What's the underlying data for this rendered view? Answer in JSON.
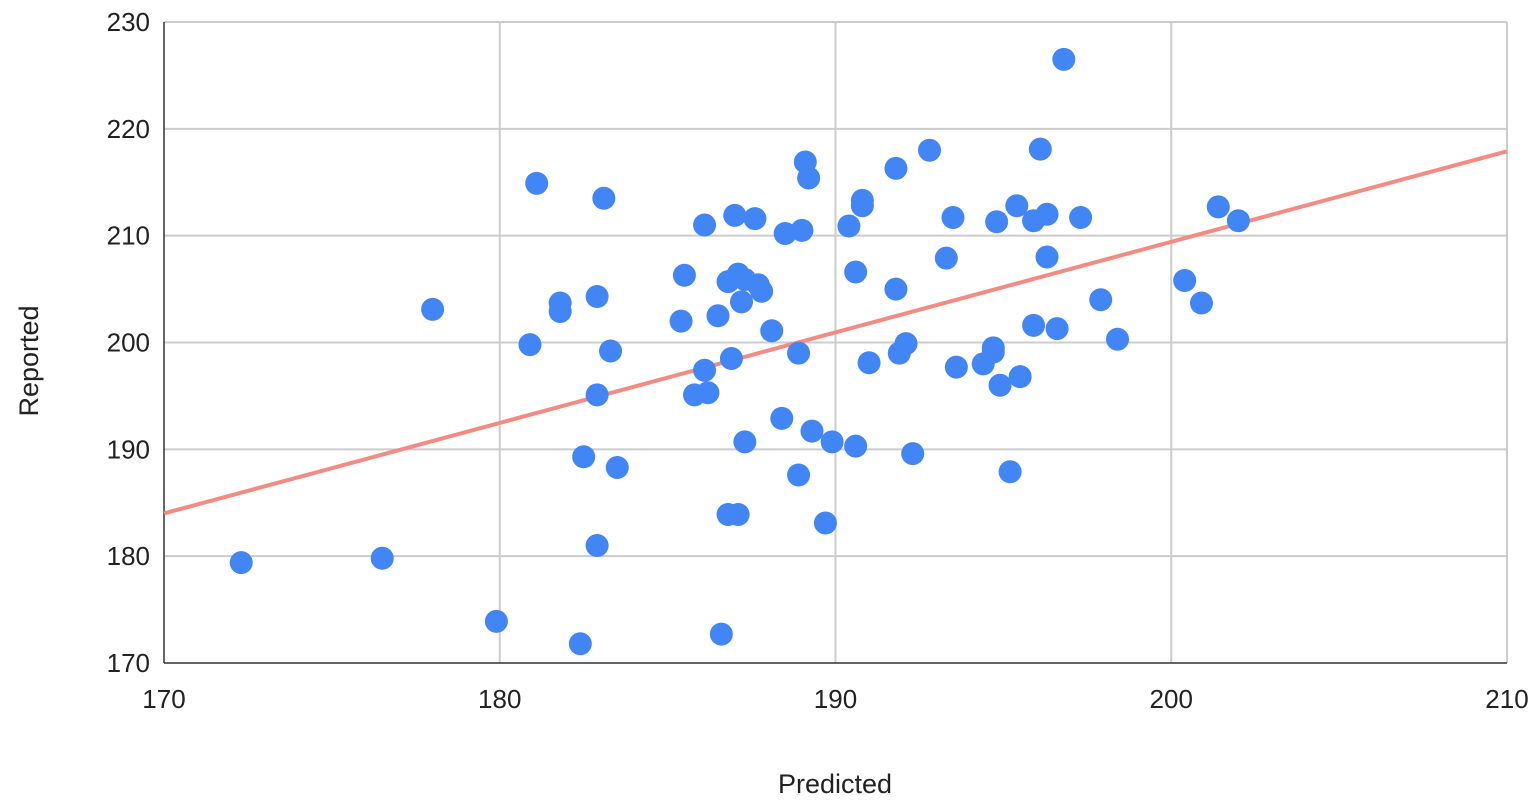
{
  "chart_data": {
    "type": "scatter",
    "title": "",
    "xlabel": "Predicted",
    "ylabel": "Reported",
    "xlim": [
      170,
      210
    ],
    "ylim": [
      170,
      230
    ],
    "x_ticks": [
      "170",
      "180",
      "190",
      "200",
      "210"
    ],
    "y_ticks": [
      "170",
      "180",
      "190",
      "200",
      "210",
      "220",
      "230"
    ],
    "grid": true,
    "colors": {
      "points": "#4285f4",
      "trendline": "#f28b82"
    },
    "trendline": {
      "type": "linear",
      "x": [
        170,
        210
      ],
      "y": [
        184.0,
        217.9
      ]
    },
    "points": [
      [
        172.3,
        179.4
      ],
      [
        176.5,
        179.8
      ],
      [
        178.0,
        203.1
      ],
      [
        179.9,
        173.9
      ],
      [
        180.9,
        199.8
      ],
      [
        181.1,
        214.9
      ],
      [
        181.8,
        203.7
      ],
      [
        181.8,
        202.9
      ],
      [
        182.4,
        171.8
      ],
      [
        182.5,
        189.3
      ],
      [
        182.9,
        181.0
      ],
      [
        182.9,
        204.3
      ],
      [
        182.9,
        195.1
      ],
      [
        183.1,
        213.5
      ],
      [
        183.3,
        199.2
      ],
      [
        183.5,
        188.3
      ],
      [
        185.4,
        202.0
      ],
      [
        185.5,
        206.3
      ],
      [
        185.8,
        195.1
      ],
      [
        186.1,
        211.0
      ],
      [
        186.1,
        197.4
      ],
      [
        186.2,
        195.3
      ],
      [
        186.5,
        202.5
      ],
      [
        186.6,
        172.7
      ],
      [
        186.8,
        205.7
      ],
      [
        186.8,
        183.9
      ],
      [
        186.9,
        198.5
      ],
      [
        187.0,
        211.9
      ],
      [
        187.1,
        206.4
      ],
      [
        187.1,
        183.9
      ],
      [
        187.2,
        203.8
      ],
      [
        187.3,
        190.7
      ],
      [
        187.3,
        205.9
      ],
      [
        187.6,
        211.6
      ],
      [
        187.7,
        205.4
      ],
      [
        187.8,
        204.8
      ],
      [
        188.1,
        201.1
      ],
      [
        188.4,
        192.9
      ],
      [
        188.5,
        210.2
      ],
      [
        188.9,
        199.0
      ],
      [
        188.9,
        187.6
      ],
      [
        189.0,
        210.5
      ],
      [
        189.1,
        216.9
      ],
      [
        189.2,
        215.4
      ],
      [
        189.3,
        191.7
      ],
      [
        189.7,
        183.1
      ],
      [
        189.9,
        190.7
      ],
      [
        190.4,
        210.9
      ],
      [
        190.6,
        190.3
      ],
      [
        190.6,
        206.6
      ],
      [
        190.8,
        213.3
      ],
      [
        190.8,
        212.8
      ],
      [
        191.0,
        198.1
      ],
      [
        191.8,
        216.3
      ],
      [
        191.8,
        205.0
      ],
      [
        191.9,
        199.0
      ],
      [
        192.1,
        199.9
      ],
      [
        192.3,
        189.6
      ],
      [
        192.8,
        218.0
      ],
      [
        193.3,
        207.9
      ],
      [
        193.5,
        211.7
      ],
      [
        193.6,
        197.7
      ],
      [
        194.4,
        198.0
      ],
      [
        194.7,
        199.5
      ],
      [
        194.7,
        199.1
      ],
      [
        194.8,
        211.3
      ],
      [
        194.9,
        196.0
      ],
      [
        195.2,
        187.9
      ],
      [
        195.4,
        212.8
      ],
      [
        195.5,
        196.8
      ],
      [
        195.9,
        201.6
      ],
      [
        195.9,
        211.4
      ],
      [
        196.1,
        218.1
      ],
      [
        196.3,
        212.0
      ],
      [
        196.3,
        208.0
      ],
      [
        196.6,
        201.3
      ],
      [
        196.8,
        226.5
      ],
      [
        197.3,
        211.7
      ],
      [
        197.9,
        204.0
      ],
      [
        198.4,
        200.3
      ],
      [
        200.4,
        205.8
      ],
      [
        200.9,
        203.7
      ],
      [
        201.4,
        212.7
      ],
      [
        202.0,
        211.4
      ]
    ]
  }
}
